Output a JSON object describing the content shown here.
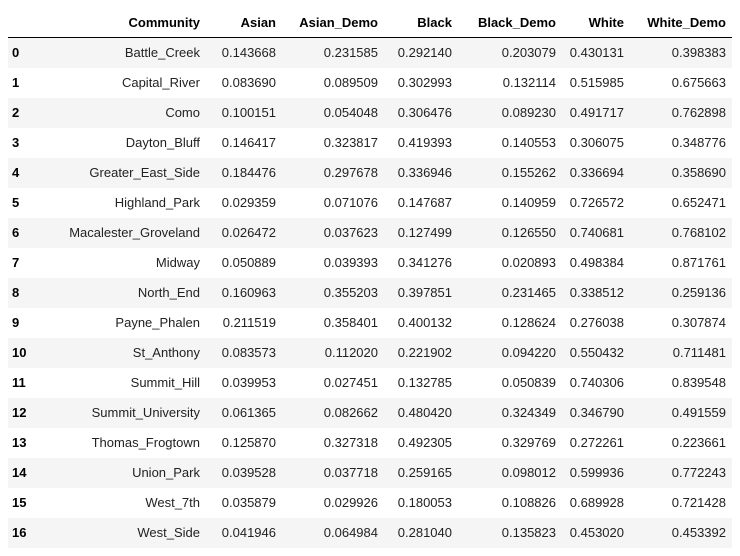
{
  "table": {
    "index_header": "",
    "columns": [
      "Community",
      "Asian",
      "Asian_Demo",
      "Black",
      "Black_Demo",
      "White",
      "White_Demo"
    ],
    "rows": [
      {
        "index": "0",
        "cells": [
          "Battle_Creek",
          "0.143668",
          "0.231585",
          "0.292140",
          "0.203079",
          "0.430131",
          "0.398383"
        ]
      },
      {
        "index": "1",
        "cells": [
          "Capital_River",
          "0.083690",
          "0.089509",
          "0.302993",
          "0.132114",
          "0.515985",
          "0.675663"
        ]
      },
      {
        "index": "2",
        "cells": [
          "Como",
          "0.100151",
          "0.054048",
          "0.306476",
          "0.089230",
          "0.491717",
          "0.762898"
        ]
      },
      {
        "index": "3",
        "cells": [
          "Dayton_Bluff",
          "0.146417",
          "0.323817",
          "0.419393",
          "0.140553",
          "0.306075",
          "0.348776"
        ]
      },
      {
        "index": "4",
        "cells": [
          "Greater_East_Side",
          "0.184476",
          "0.297678",
          "0.336946",
          "0.155262",
          "0.336694",
          "0.358690"
        ]
      },
      {
        "index": "5",
        "cells": [
          "Highland_Park",
          "0.029359",
          "0.071076",
          "0.147687",
          "0.140959",
          "0.726572",
          "0.652471"
        ]
      },
      {
        "index": "6",
        "cells": [
          "Macalester_Groveland",
          "0.026472",
          "0.037623",
          "0.127499",
          "0.126550",
          "0.740681",
          "0.768102"
        ]
      },
      {
        "index": "7",
        "cells": [
          "Midway",
          "0.050889",
          "0.039393",
          "0.341276",
          "0.020893",
          "0.498384",
          "0.871761"
        ]
      },
      {
        "index": "8",
        "cells": [
          "North_End",
          "0.160963",
          "0.355203",
          "0.397851",
          "0.231465",
          "0.338512",
          "0.259136"
        ]
      },
      {
        "index": "9",
        "cells": [
          "Payne_Phalen",
          "0.211519",
          "0.358401",
          "0.400132",
          "0.128624",
          "0.276038",
          "0.307874"
        ]
      },
      {
        "index": "10",
        "cells": [
          "St_Anthony",
          "0.083573",
          "0.112020",
          "0.221902",
          "0.094220",
          "0.550432",
          "0.711481"
        ]
      },
      {
        "index": "11",
        "cells": [
          "Summit_Hill",
          "0.039953",
          "0.027451",
          "0.132785",
          "0.050839",
          "0.740306",
          "0.839548"
        ]
      },
      {
        "index": "12",
        "cells": [
          "Summit_University",
          "0.061365",
          "0.082662",
          "0.480420",
          "0.324349",
          "0.346790",
          "0.491559"
        ]
      },
      {
        "index": "13",
        "cells": [
          "Thomas_Frogtown",
          "0.125870",
          "0.327318",
          "0.492305",
          "0.329769",
          "0.272261",
          "0.223661"
        ]
      },
      {
        "index": "14",
        "cells": [
          "Union_Park",
          "0.039528",
          "0.037718",
          "0.259165",
          "0.098012",
          "0.599936",
          "0.772243"
        ]
      },
      {
        "index": "15",
        "cells": [
          "West_7th",
          "0.035879",
          "0.029926",
          "0.180053",
          "0.108826",
          "0.689928",
          "0.721428"
        ]
      },
      {
        "index": "16",
        "cells": [
          "West_Side",
          "0.041946",
          "0.064984",
          "0.281040",
          "0.135823",
          "0.453020",
          "0.453392"
        ]
      }
    ]
  },
  "colors": {
    "row_stripe": "#f5f5f5",
    "background": "#ffffff",
    "header_rule": "#000000"
  }
}
